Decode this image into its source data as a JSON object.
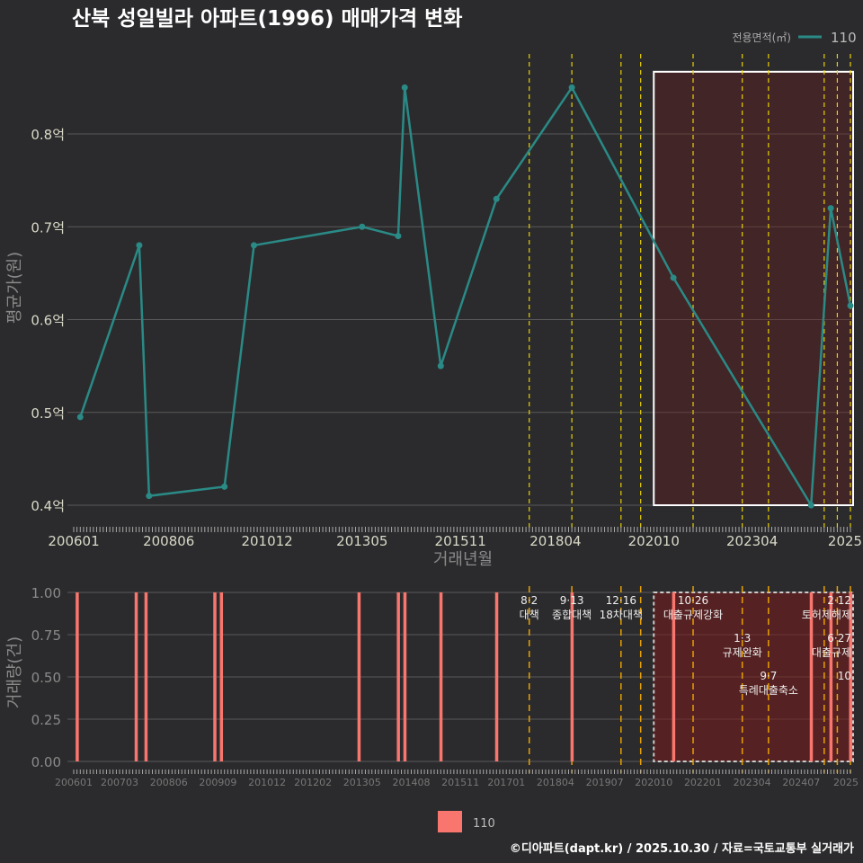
{
  "chart_data": [
    {
      "type": "line",
      "title": "산북 성일빌라 아파트(1996) 매매가격 변화",
      "xlabel": "거래년월",
      "ylabel": "평균가(원)",
      "legend": {
        "title": "전용면적(㎡)",
        "entries": [
          "110"
        ],
        "placement": "top-right"
      },
      "y_ticks": [
        {
          "v": 0.4,
          "label": "0.4억"
        },
        {
          "v": 0.5,
          "label": "0.5억"
        },
        {
          "v": 0.6,
          "label": "0.6억"
        },
        {
          "v": 0.7,
          "label": "0.7억"
        },
        {
          "v": 0.8,
          "label": "0.8억"
        }
      ],
      "ylim": [
        0.38,
        0.88
      ],
      "x_ticks": [
        "200601",
        "200806",
        "201012",
        "201305",
        "201511",
        "201804",
        "202010",
        "202304",
        "2025"
      ],
      "x": [
        "200603",
        "200709",
        "200712",
        "200911",
        "201008",
        "201305",
        "201404",
        "201406",
        "201505",
        "201610",
        "201809",
        "202104",
        "202410",
        "202504",
        "202510"
      ],
      "series": [
        {
          "name": "110",
          "color": "#2a8a86",
          "values": [
            0.495,
            0.68,
            0.41,
            0.42,
            0.68,
            0.7,
            0.69,
            0.85,
            0.55,
            0.73,
            0.85,
            0.645,
            0.4,
            0.72,
            0.615
          ]
        }
      ],
      "highlight": {
        "from": "202010",
        "to": "202510",
        "ymin": 0.4,
        "ymax": 0.867
      }
    },
    {
      "type": "bar",
      "ylabel": "거래량(건)",
      "y_ticks": [
        "0.00",
        "0.25",
        "0.50",
        "0.75",
        "1.00"
      ],
      "ylim": [
        0,
        1
      ],
      "x_ticks": [
        "200601",
        "200703",
        "200806",
        "200909",
        "201012",
        "201202",
        "201305",
        "201408",
        "201511",
        "201701",
        "201804",
        "201907",
        "202010",
        "202201",
        "202304",
        "202407",
        "2025"
      ],
      "x": [
        "200602",
        "200708",
        "200711",
        "200910",
        "200908",
        "201304",
        "201404",
        "201406",
        "201505",
        "201610",
        "201809",
        "202104",
        "202410",
        "202504",
        "202510"
      ],
      "values": [
        1,
        1,
        1,
        1,
        1,
        1,
        1,
        1,
        1,
        1,
        1,
        1,
        1,
        1,
        1
      ],
      "legend": {
        "entries": [
          "110"
        ],
        "color": "#f8766d",
        "placement": "bottom"
      }
    }
  ],
  "events": [
    {
      "date": "201708",
      "date_label": "8·2",
      "label": "대책"
    },
    {
      "date": "201809",
      "date_label": "9·13",
      "label": "종합대책"
    },
    {
      "date": "201912",
      "date_label": "12·16",
      "label": "18차대책"
    },
    {
      "date": "202006",
      "date_label": "",
      "label": ""
    },
    {
      "date": "202110",
      "date_label": "10·26",
      "label": "대출규제강화"
    },
    {
      "date": "202301",
      "date_label": "1·3",
      "label": "규제완화"
    },
    {
      "date": "202309",
      "date_label": "9·7",
      "label": "특례대출축소"
    },
    {
      "date": "202502",
      "date_label": "2·12",
      "label": "토허제해제"
    },
    {
      "date": "202506",
      "date_label": "6·27",
      "label": "대출규제"
    },
    {
      "date": "202510",
      "date_label": "10",
      "label": ""
    }
  ],
  "footer": "©디아파트(dapt.kr) / 2025.10.30 / 자료=국토교통부 실거래가"
}
